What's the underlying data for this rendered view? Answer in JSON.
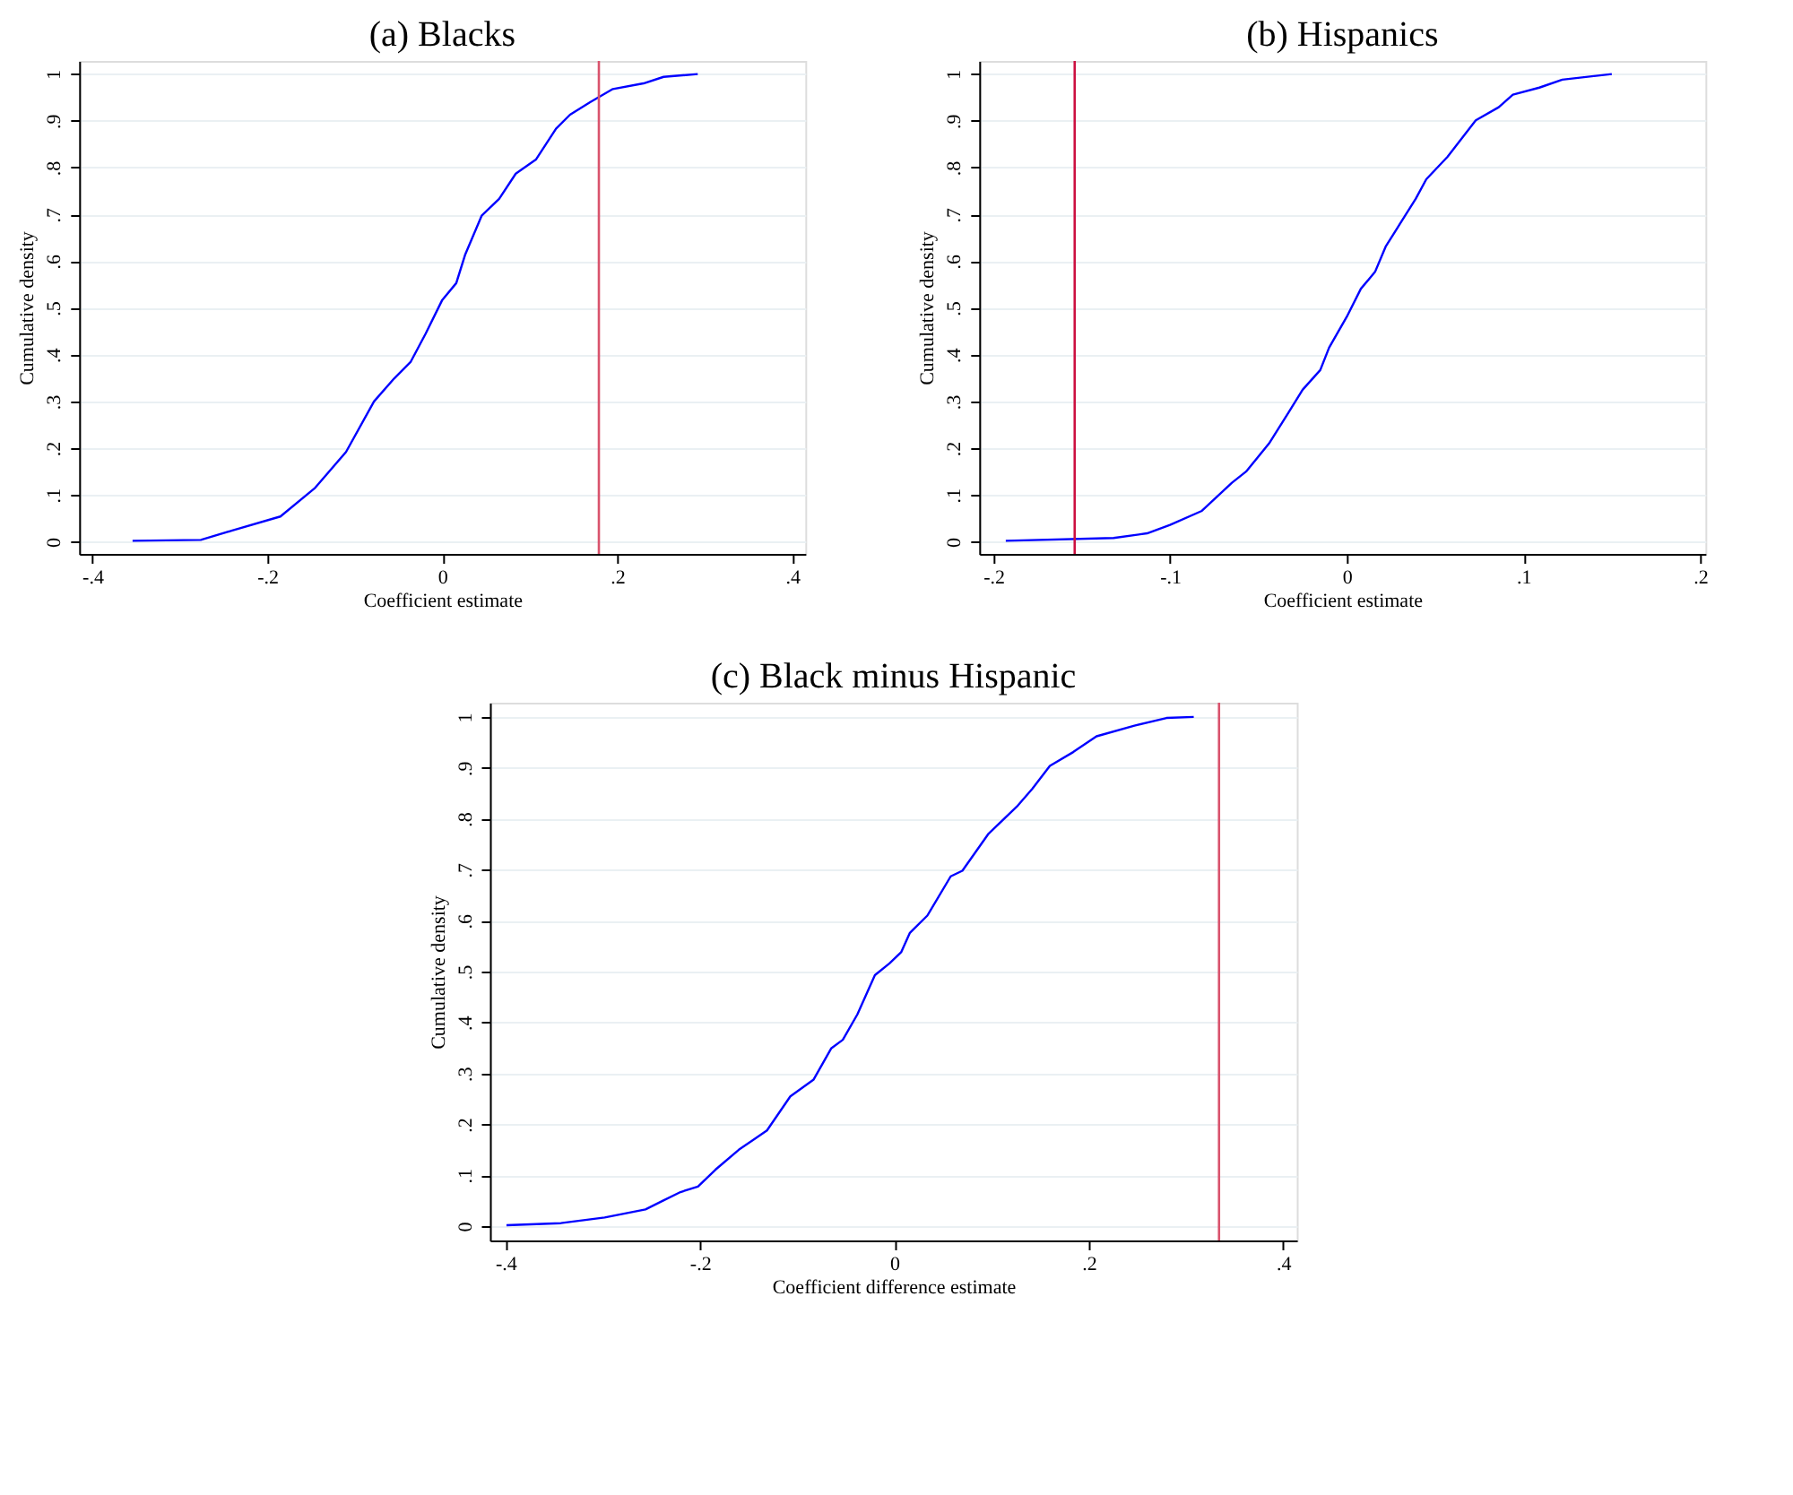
{
  "chart_data": [
    {
      "type": "line",
      "title": "(a) Blacks",
      "xlabel": "Coefficient estimate",
      "ylabel": "Cumulative density",
      "grid": "y",
      "xlim": [
        -0.415,
        0.415
      ],
      "ylim": [
        -0.026,
        1.028
      ],
      "xticks": [
        {
          "value": -0.4,
          "label": "-.4"
        },
        {
          "value": -0.2,
          "label": "-.2"
        },
        0,
        {
          "value": 0.2,
          "label": ".2"
        },
        {
          "value": 0.4,
          "label": ".4"
        }
      ],
      "yticks": [
        0,
        {
          "value": 0.1,
          "label": ".1"
        },
        {
          "value": 0.2,
          "label": ".2"
        },
        {
          "value": 0.3,
          "label": ".3"
        },
        {
          "value": 0.4,
          "label": ".4"
        },
        {
          "value": 0.5,
          "label": ".5"
        },
        {
          "value": 0.6,
          "label": ".6"
        },
        {
          "value": 0.7,
          "label": ".7"
        },
        {
          "value": 0.8,
          "label": ".8"
        },
        {
          "value": 0.9,
          "label": ".9"
        },
        1
      ],
      "series": [
        {
          "color": "#0000ff",
          "x": [
            -0.354,
            -0.276,
            -0.24,
            -0.185,
            -0.146,
            -0.11,
            -0.078,
            -0.055,
            -0.036,
            -0.019,
            0.0,
            0.016,
            0.026,
            0.045,
            0.065,
            0.084,
            0.107,
            0.13,
            0.146,
            0.169,
            0.195,
            0.23,
            0.253,
            0.292
          ],
          "values": [
            0.002,
            0.004,
            0.024,
            0.054,
            0.114,
            0.192,
            0.3,
            0.349,
            0.385,
            0.445,
            0.517,
            0.553,
            0.613,
            0.697,
            0.733,
            0.787,
            0.817,
            0.883,
            0.913,
            0.94,
            0.968,
            0.98,
            0.994,
            1.0
          ]
        }
      ],
      "ref_lines": [
        {
          "axis": "x",
          "value": 0.179,
          "color": "#d9536d"
        }
      ]
    },
    {
      "type": "line",
      "title": "(b) Hispanics",
      "xlabel": "Coefficient estimate",
      "ylabel": "Cumulative density",
      "grid": "y",
      "xlim": [
        -0.208,
        0.203
      ],
      "ylim": [
        -0.026,
        1.028
      ],
      "xticks": [
        {
          "value": -0.2,
          "label": "-.2"
        },
        {
          "value": -0.1,
          "label": "-.1"
        },
        0,
        {
          "value": 0.1,
          "label": ".1"
        },
        {
          "value": 0.2,
          "label": ".2"
        }
      ],
      "yticks": [
        0,
        {
          "value": 0.1,
          "label": ".1"
        },
        {
          "value": 0.2,
          "label": ".2"
        },
        {
          "value": 0.3,
          "label": ".3"
        },
        {
          "value": 0.4,
          "label": ".4"
        },
        {
          "value": 0.5,
          "label": ".5"
        },
        {
          "value": 0.6,
          "label": ".6"
        },
        {
          "value": 0.7,
          "label": ".7"
        },
        {
          "value": 0.8,
          "label": ".8"
        },
        {
          "value": 0.9,
          "label": ".9"
        },
        1
      ],
      "series": [
        {
          "color": "#0000ff",
          "x": [
            -0.193,
            -0.132,
            -0.113,
            -0.1,
            -0.082,
            -0.065,
            -0.057,
            -0.044,
            -0.033,
            -0.025,
            -0.015,
            -0.01,
            0.0,
            0.008,
            0.016,
            0.022,
            0.031,
            0.039,
            0.045,
            0.057,
            0.073,
            0.086,
            0.094,
            0.109,
            0.122,
            0.15
          ],
          "values": [
            0.002,
            0.008,
            0.018,
            0.036,
            0.066,
            0.126,
            0.15,
            0.21,
            0.276,
            0.325,
            0.367,
            0.415,
            0.481,
            0.541,
            0.577,
            0.631,
            0.685,
            0.733,
            0.775,
            0.823,
            0.901,
            0.929,
            0.956,
            0.971,
            0.988,
            1.0
          ]
        }
      ],
      "ref_lines": [
        {
          "axis": "x",
          "value": -0.154,
          "color": "#cc1040"
        }
      ]
    },
    {
      "type": "line",
      "title": "(c) Black minus Hispanic",
      "xlabel": "Coefficient difference estimate",
      "ylabel": "Cumulative density",
      "grid": "y",
      "xlim": [
        -0.416,
        0.414
      ],
      "ylim": [
        -0.028,
        1.028
      ],
      "xticks": [
        {
          "value": -0.4,
          "label": "-.4"
        },
        {
          "value": -0.2,
          "label": "-.2"
        },
        0,
        {
          "value": 0.2,
          "label": ".2"
        },
        {
          "value": 0.4,
          "label": ".4"
        }
      ],
      "yticks": [
        0,
        {
          "value": 0.1,
          "label": ".1"
        },
        {
          "value": 0.2,
          "label": ".2"
        },
        {
          "value": 0.3,
          "label": ".3"
        },
        {
          "value": 0.4,
          "label": ".4"
        },
        {
          "value": 0.5,
          "label": ".5"
        },
        {
          "value": 0.6,
          "label": ".6"
        },
        {
          "value": 0.7,
          "label": ".7"
        },
        {
          "value": 0.8,
          "label": ".8"
        },
        {
          "value": 0.9,
          "label": ".9"
        },
        1
      ],
      "series": [
        {
          "color": "#0000ff",
          "x": [
            -0.399,
            -0.343,
            -0.298,
            -0.256,
            -0.238,
            -0.22,
            -0.202,
            -0.184,
            -0.16,
            -0.131,
            -0.107,
            -0.083,
            -0.065,
            -0.053,
            -0.038,
            -0.02,
            -0.005,
            0.007,
            0.016,
            0.034,
            0.058,
            0.07,
            0.097,
            0.127,
            0.142,
            0.16,
            0.184,
            0.208,
            0.247,
            0.28,
            0.308
          ],
          "values": [
            0.002,
            0.006,
            0.017,
            0.033,
            0.05,
            0.067,
            0.078,
            0.111,
            0.15,
            0.188,
            0.255,
            0.288,
            0.349,
            0.366,
            0.416,
            0.493,
            0.516,
            0.538,
            0.576,
            0.61,
            0.687,
            0.698,
            0.771,
            0.826,
            0.859,
            0.904,
            0.931,
            0.962,
            0.983,
            0.998,
            1.0
          ]
        }
      ],
      "ref_lines": [
        {
          "axis": "x",
          "value": 0.334,
          "color": "#d9536d"
        }
      ]
    }
  ]
}
